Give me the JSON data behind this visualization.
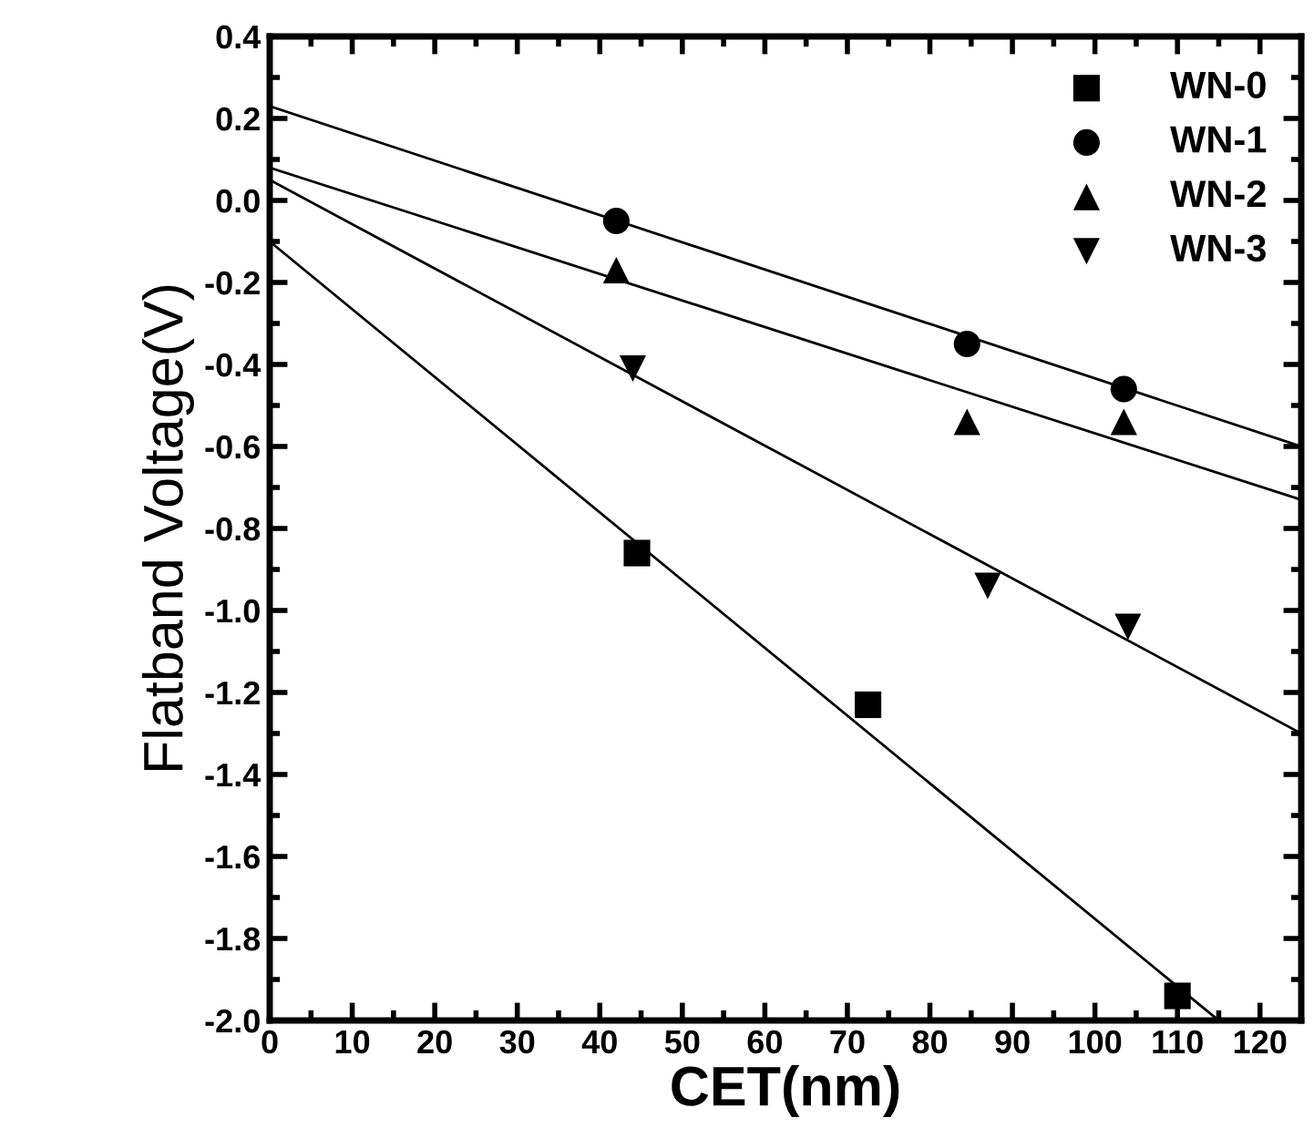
{
  "chart_data": {
    "type": "scatter",
    "xlabel": "CET(nm)",
    "ylabel": "Flatband Voltage(V)",
    "xlim": [
      0,
      125
    ],
    "xticks": [
      0,
      10,
      20,
      30,
      40,
      50,
      60,
      70,
      80,
      90,
      100,
      110,
      120
    ],
    "ylim": [
      -2.0,
      0.4
    ],
    "yticks": [
      {
        "value": -2.0,
        "label": "-2.0"
      },
      {
        "value": -1.8,
        "label": "-1.8"
      },
      {
        "value": -1.6,
        "label": "-1.6"
      },
      {
        "value": -1.4,
        "label": "-1.4"
      },
      {
        "value": -1.2,
        "label": "-1.2"
      },
      {
        "value": -1.0,
        "label": "-1.0"
      },
      {
        "value": -0.8,
        "label": "-0.8"
      },
      {
        "value": -0.6,
        "label": "-0.6"
      },
      {
        "value": -0.4,
        "label": "-0.4"
      },
      {
        "value": -0.2,
        "label": "-0.2"
      },
      {
        "value": 0.0,
        "label": "0.0"
      },
      {
        "value": 0.2,
        "label": "0.2"
      },
      {
        "value": 0.4,
        "label": "0.4"
      }
    ],
    "grid": false,
    "legend": "top right",
    "series": [
      {
        "name": "WN-0",
        "color": "#000000",
        "marker": "square",
        "x": [
          44.5,
          72.5,
          110
        ],
        "values": [
          -0.86,
          -1.23,
          -1.94
        ]
      },
      {
        "name": "WN-1",
        "color": "#000000",
        "marker": "circle",
        "x": [
          42,
          84.5,
          103.5
        ],
        "values": [
          -0.05,
          -0.35,
          -0.46
        ]
      },
      {
        "name": "WN-2",
        "color": "#000000",
        "marker": "triangle",
        "x": [
          42,
          84.5,
          103.5
        ],
        "values": [
          -0.17,
          -0.54,
          -0.54
        ]
      },
      {
        "name": "WN-3",
        "color": "#000000",
        "marker": "triangle_down",
        "x": [
          44,
          87,
          104
        ],
        "values": [
          -0.41,
          -0.94,
          -1.04
        ]
      },
      {
        "type": "line",
        "color": "#000000",
        "x": [
          0,
          115
        ],
        "values": [
          -0.1,
          -2.0
        ]
      },
      {
        "type": "line",
        "color": "#000000",
        "x": [
          0,
          125
        ],
        "values": [
          0.23,
          -0.6
        ]
      },
      {
        "type": "line",
        "color": "#000000",
        "x": [
          0,
          125
        ],
        "values": [
          0.08,
          -0.73
        ]
      },
      {
        "type": "line",
        "color": "#000000",
        "x": [
          0,
          125
        ],
        "values": [
          0.05,
          -1.3
        ]
      }
    ]
  }
}
